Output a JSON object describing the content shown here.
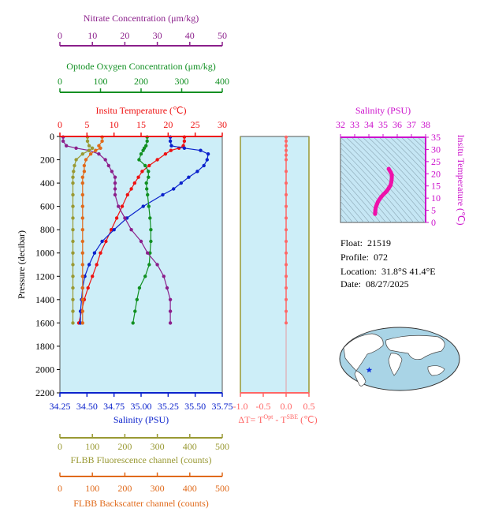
{
  "colors": {
    "nitrate": "#8b1f8b",
    "oxygen": "#119022",
    "temperature": "#ee1111",
    "salinity": "#0b22cc",
    "fluorescence": "#999933",
    "backscatter": "#e06a1b",
    "delta_t": "#ff6666",
    "plot_bg": "#cdeef8",
    "ts_bg": "#c5e6f4",
    "ts_curve": "#ee11aa",
    "ts_axis": "#cc11cc",
    "frame": "#555555"
  },
  "chart_data": [
    {
      "type": "line",
      "ylabel": "Pressure (decibar)",
      "ylim": [
        2200,
        0
      ],
      "yticks": [
        0,
        200,
        400,
        600,
        800,
        1000,
        1200,
        1400,
        1600,
        1800,
        2000,
        2200
      ],
      "grid": false,
      "axes": [
        {
          "key": "nitrate",
          "label": "Nitrate Concentration (μm/kg)",
          "range": [
            0,
            50
          ],
          "ticks": [
            "0",
            "10",
            "20",
            "30",
            "40",
            "50"
          ]
        },
        {
          "key": "oxygen",
          "label": "Optode Oxygen Concentration (μm/kg)",
          "range": [
            0,
            400
          ],
          "ticks": [
            "0",
            "100",
            "200",
            "300",
            "400"
          ]
        },
        {
          "key": "temperature",
          "label": "Insitu Temperature (℃)",
          "range": [
            0,
            30
          ],
          "ticks": [
            "0",
            "5",
            "10",
            "15",
            "20",
            "25",
            "30"
          ]
        },
        {
          "key": "salinity",
          "label": "Salinity (PSU)",
          "range": [
            34.25,
            35.75
          ],
          "ticks": [
            "34.25",
            "34.50",
            "34.75",
            "35.00",
            "35.25",
            "35.50",
            "35.75"
          ]
        },
        {
          "key": "fluorescence",
          "label": "FLBB Fluorescence channel (counts)",
          "range": [
            0,
            500
          ],
          "ticks": [
            "0",
            "100",
            "200",
            "300",
            "400",
            "500"
          ]
        },
        {
          "key": "backscatter",
          "label": "FLBB Backscatter channel (counts)",
          "range": [
            0,
            500
          ],
          "ticks": [
            "0",
            "100",
            "200",
            "300",
            "400",
            "500"
          ]
        }
      ],
      "series": [
        {
          "key": "temperature",
          "axis": "temperature",
          "pressure": [
            5,
            40,
            80,
            100,
            120,
            150,
            200,
            250,
            300,
            350,
            400,
            450,
            500,
            600,
            700,
            800,
            900,
            1000,
            1100,
            1200,
            1300,
            1400,
            1500,
            1600
          ],
          "values": [
            23.0,
            23.0,
            22.8,
            22.0,
            20.5,
            19.5,
            18.0,
            16.5,
            15.2,
            14.5,
            13.8,
            13.2,
            12.5,
            11.5,
            10.5,
            9.5,
            8.5,
            7.5,
            6.8,
            6.0,
            5.2,
            4.5,
            4.0,
            3.5
          ]
        },
        {
          "key": "salinity",
          "axis": "salinity",
          "pressure": [
            5,
            40,
            80,
            100,
            120,
            150,
            200,
            250,
            300,
            350,
            400,
            450,
            500,
            600,
            700,
            800,
            900,
            1000,
            1100,
            1200,
            1300,
            1400,
            1500,
            1600
          ],
          "values": [
            35.27,
            35.27,
            35.28,
            35.4,
            35.55,
            35.62,
            35.61,
            35.58,
            35.52,
            35.44,
            35.37,
            35.3,
            35.2,
            35.02,
            34.87,
            34.75,
            34.64,
            34.57,
            34.52,
            34.48,
            34.46,
            34.45,
            34.44,
            34.44
          ]
        },
        {
          "key": "oxygen",
          "axis": "oxygen",
          "pressure": [
            5,
            40,
            80,
            100,
            120,
            150,
            200,
            250,
            300,
            350,
            400,
            450,
            500,
            600,
            700,
            800,
            900,
            1000,
            1100,
            1200,
            1300,
            1400,
            1500,
            1600
          ],
          "values": [
            215,
            215,
            212,
            208,
            205,
            200,
            195,
            210,
            218,
            218,
            213,
            214,
            216,
            219,
            222,
            224,
            224,
            222,
            220,
            210,
            196,
            190,
            185,
            180
          ]
        },
        {
          "key": "nitrate",
          "axis": "nitrate",
          "pressure": [
            5,
            40,
            80,
            100,
            120,
            150,
            200,
            250,
            300,
            350,
            400,
            450,
            500,
            600,
            700,
            800,
            900,
            1000,
            1100,
            1200,
            1300,
            1400,
            1500,
            1600
          ],
          "values": [
            1,
            1,
            2,
            5,
            9,
            12,
            14,
            15,
            16,
            17,
            17,
            17,
            17,
            18,
            20,
            22,
            25,
            27,
            30,
            32,
            33,
            34,
            34,
            34
          ]
        },
        {
          "key": "fluorescence",
          "axis": "fluorescence",
          "pressure": [
            5,
            40,
            80,
            100,
            120,
            150,
            200,
            250,
            300,
            350,
            400,
            500,
            600,
            700,
            800,
            900,
            1000,
            1100,
            1200,
            1300,
            1400,
            1500,
            1600
          ],
          "values": [
            85,
            85,
            90,
            100,
            90,
            70,
            50,
            45,
            42,
            40,
            40,
            40,
            40,
            40,
            40,
            40,
            40,
            40,
            40,
            40,
            40,
            40,
            40
          ]
        },
        {
          "key": "backscatter",
          "axis": "backscatter",
          "pressure": [
            5,
            40,
            80,
            100,
            120,
            150,
            200,
            250,
            300,
            350,
            400,
            500,
            600,
            700,
            800,
            900,
            1000,
            1100,
            1200,
            1300,
            1400,
            1500,
            1600
          ],
          "values": [
            130,
            130,
            120,
            125,
            110,
            95,
            80,
            75,
            75,
            70,
            70,
            70,
            70,
            70,
            70,
            70,
            70,
            70,
            70,
            70,
            70,
            70,
            70
          ]
        }
      ]
    },
    {
      "type": "line",
      "xlabel": "ΔT= T",
      "xlabel_sup1": "Opt",
      "xlabel_mid": " - T",
      "xlabel_sup2": "SBE",
      "xlabel_unit": " (℃)",
      "xlim": [
        -1.0,
        0.5
      ],
      "xticks": [
        "-1.0",
        "-0.5",
        "0.0",
        "0.5"
      ],
      "ylim": [
        2200,
        0
      ],
      "pressure": [
        5,
        40,
        80,
        120,
        160,
        200,
        300,
        400,
        500,
        600,
        700,
        800,
        900,
        1000,
        1100,
        1200,
        1300,
        1400,
        1500,
        1600
      ],
      "values": [
        0.0,
        0.0,
        0.0,
        0.0,
        0.0,
        0.0,
        0.0,
        0.0,
        0.0,
        0.0,
        0.0,
        0.0,
        0.0,
        0.0,
        0.0,
        0.0,
        0.0,
        0.0,
        0.0,
        0.0
      ]
    },
    {
      "type": "scatter",
      "title": "Salinity (PSU)",
      "xlim": [
        32,
        38
      ],
      "xticks": [
        "32",
        "33",
        "34",
        "35",
        "36",
        "37",
        "38"
      ],
      "ylabel": "Insitu Temperature (℃)",
      "ylim": [
        0,
        35
      ],
      "yticks": [
        "0",
        "5",
        "10",
        "15",
        "20",
        "25",
        "30",
        "35"
      ],
      "salinity": [
        34.44,
        34.44,
        34.45,
        34.46,
        34.48,
        34.52,
        34.57,
        34.64,
        34.75,
        34.87,
        35.02,
        35.2,
        35.3,
        35.37,
        35.44,
        35.52,
        35.58,
        35.61,
        35.62,
        35.55,
        35.4
      ],
      "temperature": [
        3.5,
        4.0,
        4.5,
        5.2,
        6.0,
        6.8,
        7.5,
        8.5,
        9.5,
        10.5,
        11.5,
        12.5,
        13.2,
        13.8,
        14.5,
        15.2,
        16.5,
        18.0,
        19.5,
        20.5,
        22.0
      ]
    }
  ],
  "info": {
    "float_label": "Float:",
    "float_value": "21519",
    "profile_label": "Profile:",
    "profile_value": "072",
    "location_label": "Location:",
    "location_value": "31.8°S  41.4°E",
    "date_label": "Date:",
    "date_value": "08/27/2025"
  },
  "map": {
    "marker_lat": -31.8,
    "marker_lon": 41.4,
    "marker_icon": "star-icon"
  }
}
